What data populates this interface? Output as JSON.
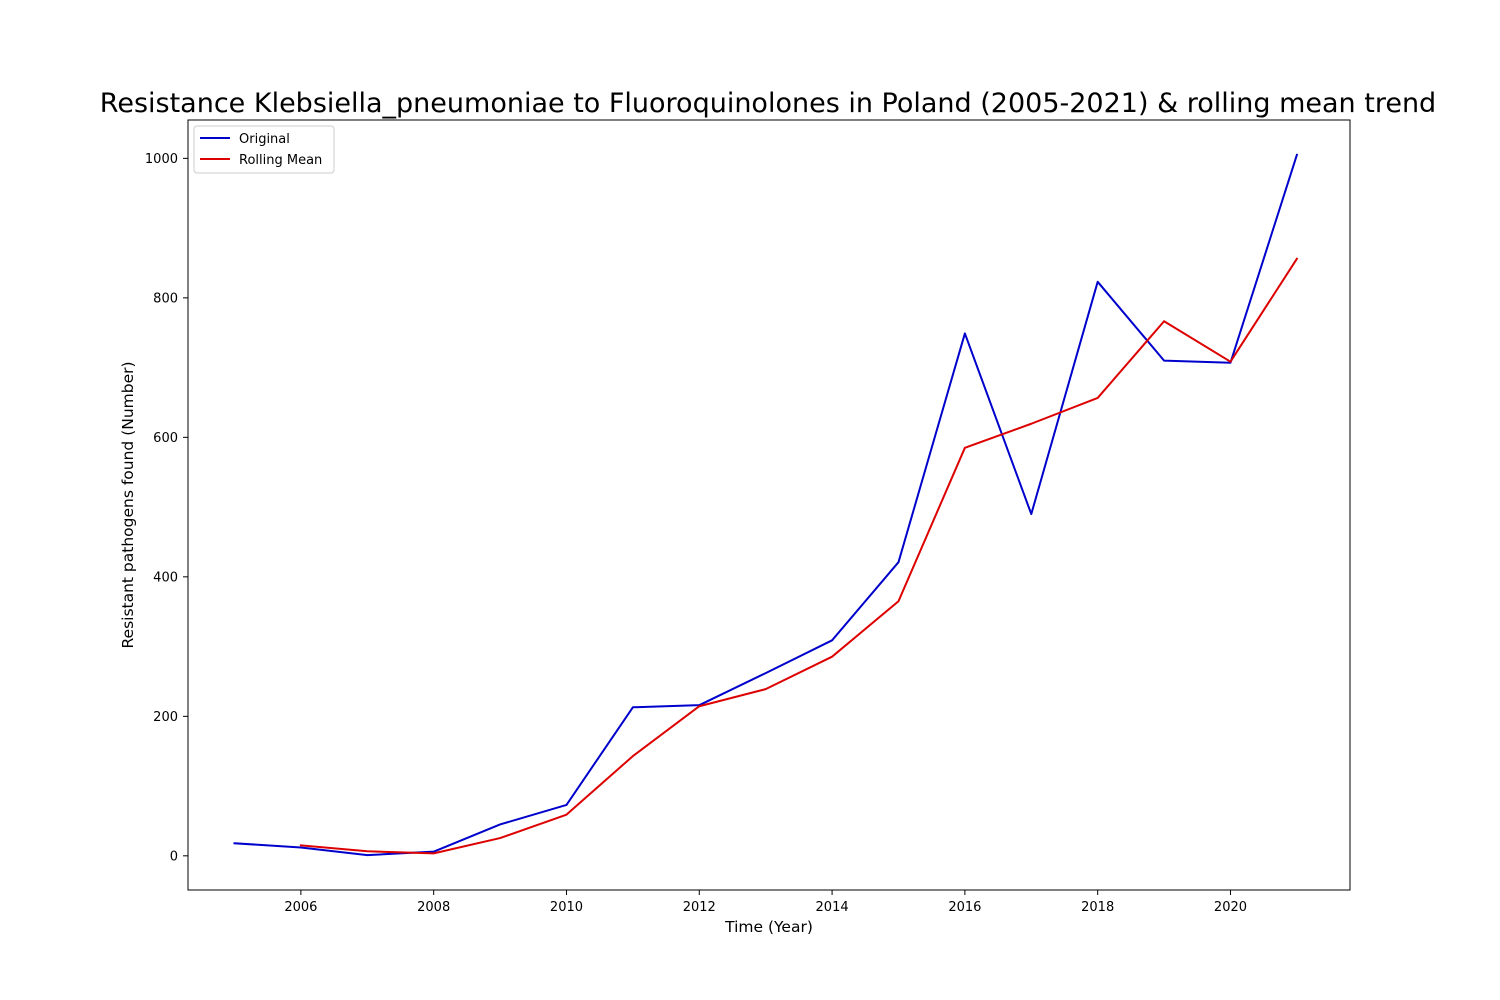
{
  "chart_data": {
    "type": "line",
    "title": "Resistance Klebsiella_pneumoniae to Fluoroquinolones in Poland (2005-2021) & rolling mean trend",
    "xlabel": "Time (Year)",
    "ylabel": "Resistant pathogens found (Number)",
    "xlim": [
      2004.3,
      2021.8
    ],
    "ylim": [
      -49,
      1055
    ],
    "x_ticks": [
      2006,
      2008,
      2010,
      2012,
      2014,
      2016,
      2018,
      2020
    ],
    "y_ticks": [
      0,
      200,
      400,
      600,
      800,
      1000
    ],
    "grid": false,
    "legend_position": "top-left",
    "series": [
      {
        "name": "Original",
        "color": "#0000cc",
        "x": [
          2005,
          2006,
          2007,
          2008,
          2009,
          2010,
          2011,
          2012,
          2013,
          2014,
          2015,
          2016,
          2017,
          2018,
          2019,
          2020,
          2021
        ],
        "values": [
          18,
          12,
          1,
          6,
          45,
          73,
          213,
          216,
          262,
          309,
          421,
          749,
          490,
          823,
          710,
          707,
          1005
        ]
      },
      {
        "name": "Rolling Mean",
        "color": "#dd0000",
        "x": [
          2006,
          2007,
          2008,
          2009,
          2010,
          2011,
          2012,
          2013,
          2014,
          2015,
          2016,
          2017,
          2018,
          2019,
          2020,
          2021
        ],
        "values": [
          15,
          6.5,
          3.5,
          25.5,
          59,
          143,
          214.5,
          239,
          285.5,
          365,
          585,
          619.5,
          656.5,
          766.5,
          708.5,
          856
        ]
      }
    ]
  }
}
